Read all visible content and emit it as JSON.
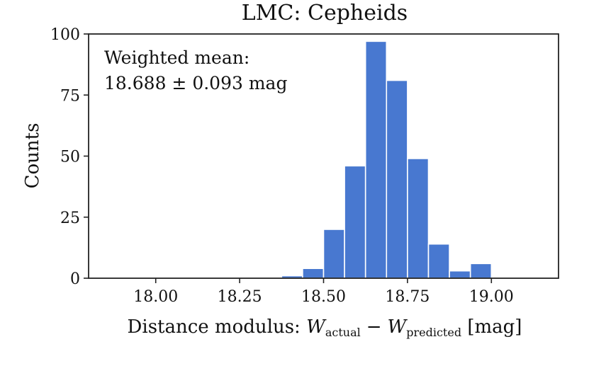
{
  "chart_data": {
    "type": "bar",
    "title": "LMC: Cepheids",
    "xlabel": {
      "prefix": "Distance modulus: ",
      "term1_symbol": "W",
      "term1_subscript": "actual",
      "operator": "−",
      "term2_symbol": "W",
      "term2_subscript": "predicted",
      "suffix": " [mag]"
    },
    "ylabel": "Counts",
    "xlim": [
      17.8,
      19.2
    ],
    "ylim": [
      0,
      100
    ],
    "xticks": [
      18.0,
      18.25,
      18.5,
      18.75,
      19.0
    ],
    "xtick_labels": [
      "18.00",
      "18.25",
      "18.50",
      "18.75",
      "19.00"
    ],
    "yticks": [
      0,
      25,
      50,
      75,
      100
    ],
    "ytick_labels": [
      "0",
      "25",
      "50",
      "75",
      "100"
    ],
    "bin_width": 0.0625,
    "bins": [
      {
        "left": 18.375,
        "count": 1
      },
      {
        "left": 18.4375,
        "count": 4
      },
      {
        "left": 18.5,
        "count": 20
      },
      {
        "left": 18.5625,
        "count": 46
      },
      {
        "left": 18.625,
        "count": 97
      },
      {
        "left": 18.6875,
        "count": 81
      },
      {
        "left": 18.75,
        "count": 49
      },
      {
        "left": 18.8125,
        "count": 14
      },
      {
        "left": 18.875,
        "count": 3
      },
      {
        "left": 18.9375,
        "count": 6
      }
    ],
    "bar_color": "#4878d0",
    "grid": false,
    "annotation": {
      "line1": "Weighted mean:",
      "line2": "18.688 ± 0.093 mag"
    }
  }
}
